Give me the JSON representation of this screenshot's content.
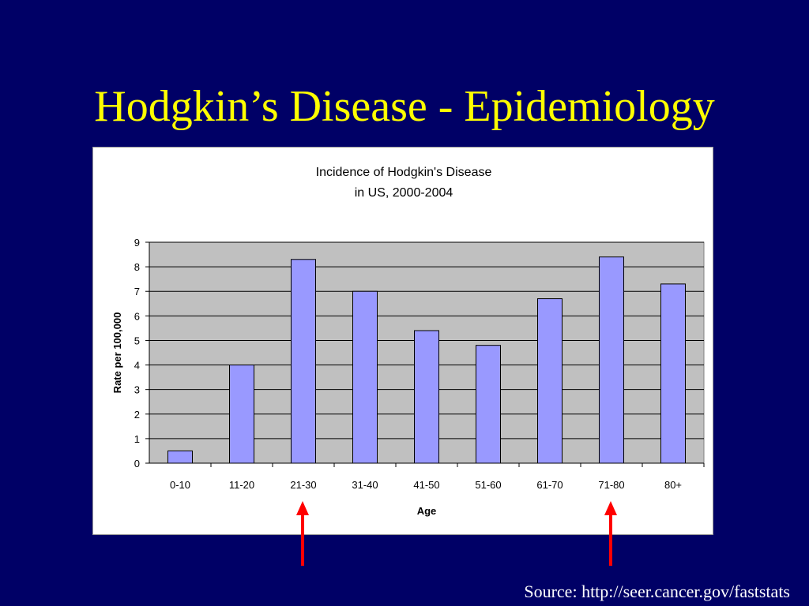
{
  "slide": {
    "title": "Hodgkin’s Disease - Epidemiology",
    "source": "Source: http://seer.cancer.gov/faststats"
  },
  "colors": {
    "background": "#000066",
    "title": "#ffff00",
    "bar_fill": "#9999ff",
    "plot_background": "#c0c0c0",
    "arrow": "#ff0000",
    "source_text": "#ffffff"
  },
  "chart_data": {
    "type": "bar",
    "title_lines": [
      "Incidence of Hodgkin's Disease",
      "in US, 2000-2004"
    ],
    "categories": [
      "0-10",
      "11-20",
      "21-30",
      "31-40",
      "41-50",
      "51-60",
      "61-70",
      "71-80",
      "80+"
    ],
    "values": [
      0.5,
      4.0,
      8.3,
      7.0,
      5.4,
      4.8,
      6.7,
      8.4,
      7.3
    ],
    "xlabel": "Age",
    "ylabel": "Rate per 100,000",
    "ylim": [
      0,
      9
    ],
    "yticks": [
      0,
      1,
      2,
      3,
      4,
      5,
      6,
      7,
      8,
      9
    ],
    "grid": true,
    "legend": "none"
  },
  "annotations": {
    "arrows_under_categories": [
      "21-30",
      "71-80"
    ]
  }
}
